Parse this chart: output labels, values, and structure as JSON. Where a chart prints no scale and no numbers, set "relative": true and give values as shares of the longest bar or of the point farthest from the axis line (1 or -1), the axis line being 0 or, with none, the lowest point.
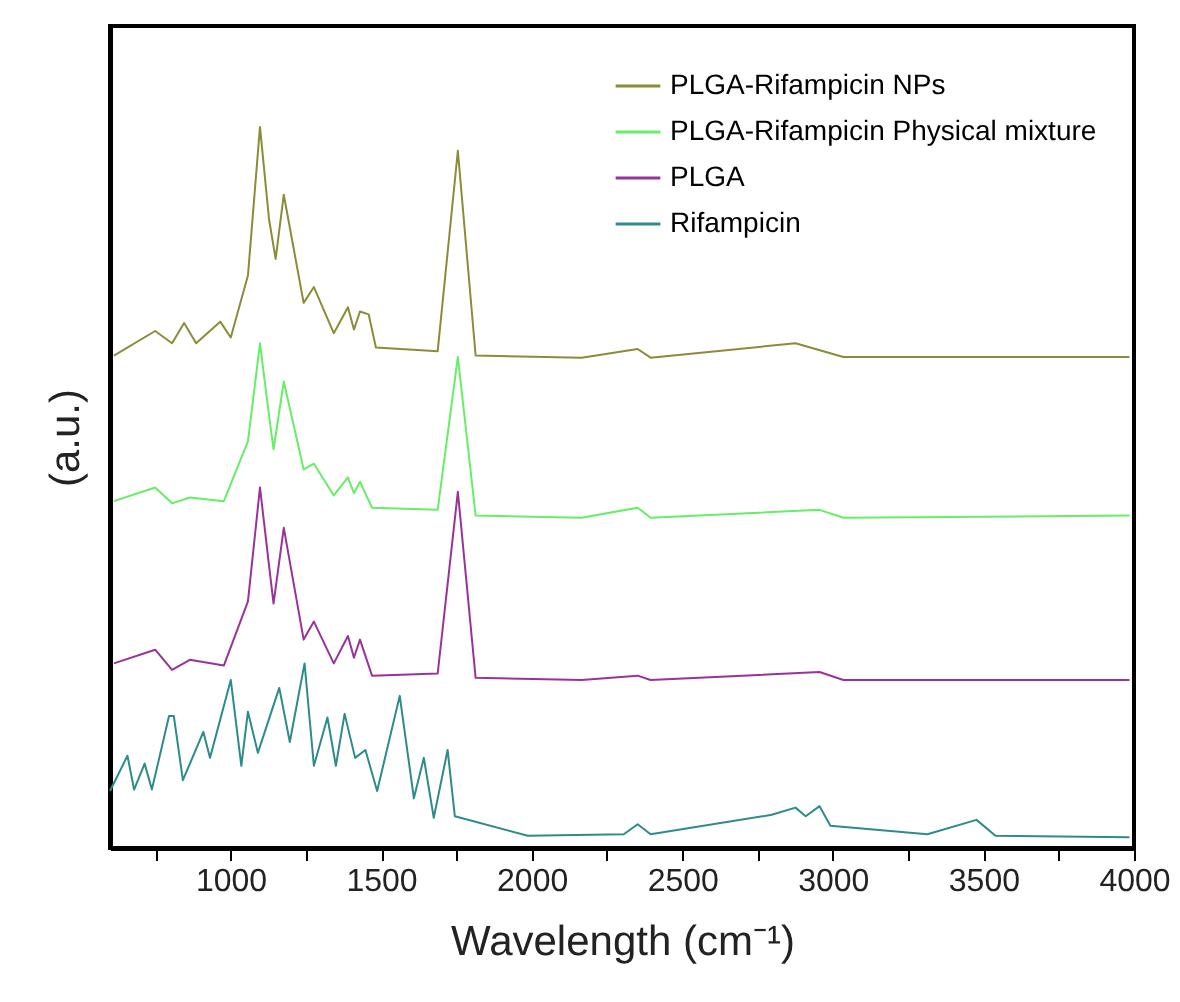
{
  "chart_data": {
    "type": "line",
    "relative": true,
    "xlabel": "Wavelength (cm⁻¹)",
    "ylabel": "(a.u.)",
    "xlim": [
      600,
      4000
    ],
    "xticks": [
      {
        "value": 750,
        "label": null
      },
      1000,
      {
        "value": 1250,
        "label": null
      },
      1500,
      {
        "value": 1750,
        "label": null
      },
      2000,
      {
        "value": 2250,
        "label": null
      },
      2500,
      {
        "value": 2750,
        "label": null
      },
      3000,
      {
        "value": 3250,
        "label": null
      },
      3500,
      {
        "value": 3750,
        "label": null
      },
      4000
    ],
    "legend": "top right",
    "grid": false,
    "marker": "none",
    "line_style": "solid",
    "series": [
      {
        "name": "PLGA-Rifampicin NPs",
        "color": "#8b8b3a",
        "x": [
          613,
          750,
          806,
          846,
          886,
          966,
          1001,
          1058,
          1098,
          1128,
          1150,
          1177,
          1243,
          1277,
          1343,
          1390,
          1410,
          1430,
          1459,
          1483,
          1688,
          1755,
          1814,
          2166,
          2352,
          2395,
          2876,
          3035,
          3985
        ],
        "values": [
          0.683,
          0.717,
          0.7,
          0.728,
          0.7,
          0.73,
          0.708,
          0.794,
          1.0,
          0.872,
          0.817,
          0.906,
          0.756,
          0.778,
          0.714,
          0.75,
          0.719,
          0.744,
          0.74,
          0.694,
          0.689,
          0.967,
          0.683,
          0.68,
          0.692,
          0.68,
          0.7,
          0.681,
          0.681
        ]
      },
      {
        "name": "PLGA-Rifampicin Physical mixture",
        "color": "#66ee66",
        "x": [
          613,
          750,
          806,
          865,
          978,
          1058,
          1098,
          1128,
          1143,
          1177,
          1243,
          1277,
          1343,
          1390,
          1410,
          1430,
          1470,
          1688,
          1755,
          1814,
          2166,
          2352,
          2395,
          2956,
          3035,
          3985
        ],
        "values": [
          0.481,
          0.5,
          0.478,
          0.486,
          0.481,
          0.564,
          0.7,
          0.6,
          0.553,
          0.647,
          0.525,
          0.533,
          0.489,
          0.514,
          0.492,
          0.508,
          0.472,
          0.469,
          0.681,
          0.461,
          0.458,
          0.472,
          0.458,
          0.469,
          0.458,
          0.461
        ]
      },
      {
        "name": "PLGA",
        "color": "#993399",
        "x": [
          613,
          750,
          806,
          865,
          978,
          1058,
          1098,
          1128,
          1143,
          1177,
          1243,
          1277,
          1343,
          1390,
          1410,
          1430,
          1470,
          1688,
          1755,
          1814,
          2166,
          2352,
          2395,
          2956,
          3035,
          3985
        ],
        "values": [
          0.256,
          0.275,
          0.247,
          0.261,
          0.253,
          0.342,
          0.5,
          0.392,
          0.339,
          0.444,
          0.289,
          0.314,
          0.256,
          0.294,
          0.264,
          0.289,
          0.239,
          0.242,
          0.494,
          0.236,
          0.233,
          0.239,
          0.233,
          0.244,
          0.233,
          0.233
        ]
      },
      {
        "name": "Rifampicin",
        "color": "#2e8b8b",
        "x": [
          600,
          658,
          680,
          715,
          739,
          796,
          812,
          842,
          910,
          932,
          1001,
          1036,
          1058,
          1091,
          1162,
          1197,
          1246,
          1277,
          1322,
          1350,
          1379,
          1414,
          1448,
          1487,
          1562,
          1609,
          1642,
          1675,
          1721,
          1745,
          1987,
          2306,
          2352,
          2395,
          2797,
          2876,
          2910,
          2956,
          2992,
          3314,
          3477,
          3540,
          3985
        ],
        "values": [
          0.079,
          0.128,
          0.081,
          0.117,
          0.081,
          0.183,
          0.183,
          0.094,
          0.161,
          0.125,
          0.233,
          0.114,
          0.189,
          0.132,
          0.222,
          0.147,
          0.256,
          0.114,
          0.181,
          0.114,
          0.186,
          0.125,
          0.136,
          0.079,
          0.211,
          0.069,
          0.125,
          0.042,
          0.136,
          0.044,
          0.017,
          0.019,
          0.033,
          0.019,
          0.046,
          0.056,
          0.044,
          0.058,
          0.031,
          0.019,
          0.039,
          0.017,
          0.015
        ]
      }
    ]
  }
}
